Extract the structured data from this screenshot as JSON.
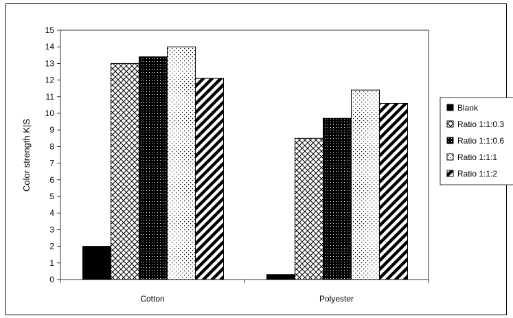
{
  "chart_data": {
    "type": "bar",
    "ylabel": "Color strength K|S",
    "ylim": [
      0,
      15
    ],
    "yticks": [
      0,
      1,
      2,
      3,
      4,
      5,
      6,
      7,
      8,
      9,
      10,
      11,
      12,
      13,
      14,
      15
    ],
    "categories": [
      "Cotton",
      "Polyester"
    ],
    "series": [
      {
        "name": "Blank",
        "values": [
          2.0,
          0.3
        ],
        "pattern": "solid"
      },
      {
        "name": "Ratio 1:1:0.3",
        "values": [
          13.0,
          8.5
        ],
        "pattern": "crosshatch"
      },
      {
        "name": "Ratio 1:1:0.6",
        "values": [
          13.4,
          9.7
        ],
        "pattern": "dark-dots"
      },
      {
        "name": "Ratio 1:1:1",
        "values": [
          14.0,
          11.4
        ],
        "pattern": "light-dots"
      },
      {
        "name": "Ratio 1:1:2",
        "values": [
          12.1,
          10.6
        ],
        "pattern": "diagonal"
      }
    ],
    "grid": false,
    "legend": "right",
    "colors": {
      "plot_background": "#ffffff",
      "bar_outline": "#000000",
      "frame": "#000000"
    }
  }
}
